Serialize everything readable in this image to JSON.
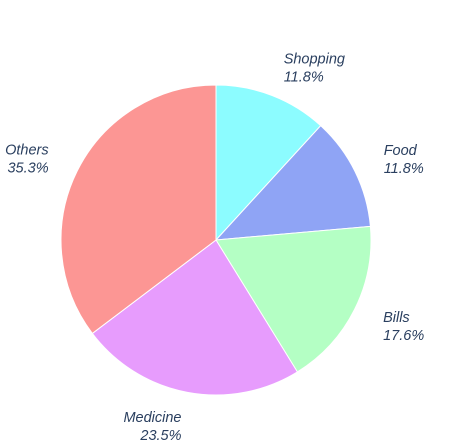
{
  "chart_data": {
    "type": "pie",
    "title": "",
    "legend": "none",
    "start_angle_deg": 0,
    "direction": "clockwise",
    "slices": [
      {
        "label": "Shopping",
        "percent_text": "11.8%",
        "value": 11.8,
        "color": "#8cfcff"
      },
      {
        "label": "Food",
        "percent_text": "11.8%",
        "value": 11.8,
        "color": "#8fa4f5"
      },
      {
        "label": "Bills",
        "percent_text": "17.6%",
        "value": 17.6,
        "color": "#b4ffc4"
      },
      {
        "label": "Medicine",
        "percent_text": "23.5%",
        "value": 23.5,
        "color": "#e79cfd"
      },
      {
        "label": "Others",
        "percent_text": "35.3%",
        "value": 35.3,
        "color": "#fc9694"
      }
    ]
  }
}
